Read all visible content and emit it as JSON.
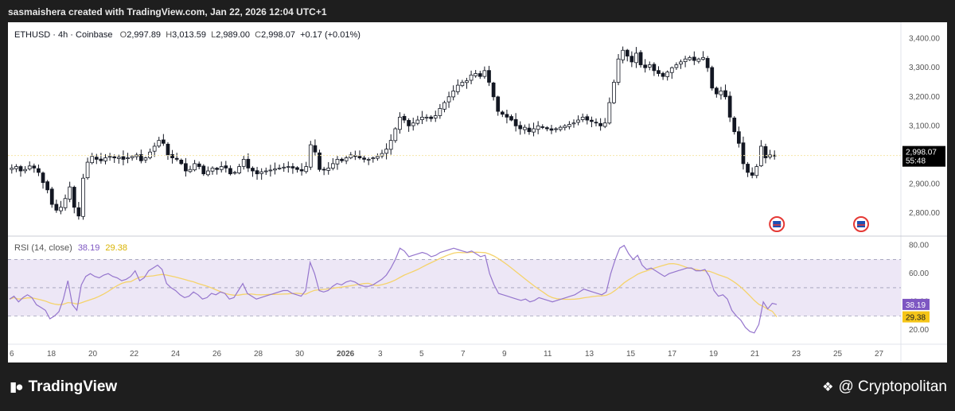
{
  "header": {
    "attribution": "sasmaishera created with TradingView.com, Jan 22, 2026 12:04 UTC+1"
  },
  "legend": {
    "symbol": "ETHUSD · 4h · Coinbase",
    "open_label": "O",
    "open": "2,997.89",
    "high_label": "H",
    "high": "3,013.59",
    "low_label": "L",
    "low": "2,989.00",
    "close_label": "C",
    "close": "2,998.07",
    "change": "+0.17 (+0.01%)"
  },
  "rsi_legend": {
    "label": "RSI (14, close)",
    "rsi_value": "38.19",
    "ma_value": "29.38"
  },
  "price_tag": {
    "price": "2,998.07",
    "countdown": "55:48"
  },
  "rsi_tags": {
    "rsi": "38.19",
    "ma": "29.38"
  },
  "footer": {
    "brand": "TradingView",
    "watermark": "@ Cryptopolitan"
  },
  "colors": {
    "up": "#131722",
    "down": "#131722",
    "rsi_line": "#9575cd",
    "rsi_ma": "#f5d36b",
    "rsi_band": "#ede7f6",
    "price_tag_bg": "#000000"
  },
  "icons": {
    "event_icon": "us-flag-event-icon"
  },
  "chart_data": {
    "type": "candlestick",
    "price_axis": {
      "ticks": [
        2800,
        2900,
        3000,
        3100,
        3200,
        3300,
        3400
      ],
      "tick_labels": [
        "2,800.00",
        "2,900.00",
        "3,000.00",
        "3,100.00",
        "3,200.00",
        "3,300.00",
        "3,400.00"
      ],
      "range": [
        2740,
        3440
      ]
    },
    "rsi_axis": {
      "ticks": [
        20,
        40,
        60,
        80
      ],
      "tick_labels": [
        "20.00",
        "40.00",
        "60.00",
        "80.00"
      ],
      "range": [
        10,
        86
      ],
      "band": [
        30,
        70
      ],
      "mid": 50
    },
    "x_axis": {
      "tick_labels": [
        "6",
        "18",
        "20",
        "22",
        "24",
        "26",
        "28",
        "30",
        "2026",
        "3",
        "5",
        "7",
        "9",
        "11",
        "13",
        "15",
        "17",
        "19",
        "21",
        "23",
        "25",
        "27"
      ]
    },
    "close_path": [
      2955,
      2960,
      2945,
      2950,
      2962,
      2955,
      2940,
      2905,
      2880,
      2830,
      2810,
      2820,
      2850,
      2890,
      2820,
      2790,
      2920,
      2975,
      2995,
      2985,
      2980,
      2990,
      2995,
      2990,
      2992,
      2985,
      2990,
      2995,
      3000,
      2980,
      2990,
      3010,
      3030,
      3050,
      3040,
      3000,
      2990,
      2985,
      2970,
      2945,
      2950,
      2970,
      2960,
      2935,
      2945,
      2955,
      2950,
      2960,
      2955,
      2935,
      2940,
      2960,
      2985,
      2955,
      2945,
      2935,
      2942,
      2945,
      2948,
      2952,
      2955,
      2958,
      2960,
      2955,
      2950,
      2945,
      2960,
      3035,
      3010,
      2950,
      2948,
      2955,
      2970,
      2985,
      2980,
      2990,
      3000,
      2995,
      2990,
      2985,
      2985,
      2990,
      2995,
      3005,
      3020,
      3050,
      3090,
      3130,
      3120,
      3100,
      3110,
      3120,
      3130,
      3130,
      3125,
      3135,
      3160,
      3180,
      3200,
      3220,
      3240,
      3250,
      3255,
      3275,
      3280,
      3270,
      3290,
      3250,
      3200,
      3150,
      3140,
      3130,
      3120,
      3100,
      3090,
      3095,
      3080,
      3090,
      3100,
      3095,
      3090,
      3085,
      3090,
      3095,
      3100,
      3105,
      3110,
      3120,
      3130,
      3120,
      3115,
      3110,
      3100,
      3110,
      3180,
      3250,
      3330,
      3360,
      3340,
      3320,
      3350,
      3310,
      3300,
      3310,
      3290,
      3280,
      3270,
      3285,
      3300,
      3310,
      3320,
      3330,
      3335,
      3325,
      3330,
      3335,
      3300,
      3230,
      3210,
      3220,
      3200,
      3130,
      3080,
      3040,
      2970,
      2940,
      2930,
      2960,
      3030,
      2990,
      3000,
      2998
    ],
    "rsi_path": [
      42,
      44,
      40,
      43,
      45,
      43,
      38,
      36,
      34,
      28,
      30,
      33,
      42,
      55,
      38,
      34,
      52,
      58,
      60,
      58,
      57,
      59,
      60,
      58,
      57,
      55,
      56,
      58,
      62,
      55,
      57,
      62,
      64,
      66,
      63,
      53,
      50,
      48,
      45,
      43,
      44,
      47,
      45,
      42,
      43,
      46,
      45,
      47,
      46,
      42,
      43,
      48,
      53,
      46,
      44,
      42,
      43,
      44,
      45,
      46,
      47,
      48,
      48,
      46,
      45,
      44,
      48,
      68,
      60,
      48,
      47,
      48,
      51,
      53,
      52,
      54,
      55,
      54,
      52,
      51,
      51,
      52,
      54,
      56,
      59,
      64,
      70,
      78,
      76,
      72,
      73,
      74,
      75,
      74,
      72,
      73,
      75,
      76,
      77,
      78,
      77,
      76,
      75,
      76,
      74,
      72,
      73,
      60,
      52,
      46,
      45,
      44,
      43,
      42,
      41,
      42,
      40,
      41,
      43,
      42,
      41,
      40,
      41,
      42,
      43,
      44,
      45,
      47,
      49,
      48,
      47,
      46,
      45,
      47,
      60,
      70,
      78,
      80,
      74,
      70,
      73,
      66,
      63,
      64,
      62,
      60,
      58,
      60,
      61,
      62,
      63,
      64,
      64,
      62,
      62,
      63,
      58,
      48,
      44,
      45,
      42,
      34,
      30,
      27,
      22,
      19,
      18,
      24,
      40,
      35,
      39,
      38.19
    ],
    "rsi_ma_end": 29.38
  }
}
